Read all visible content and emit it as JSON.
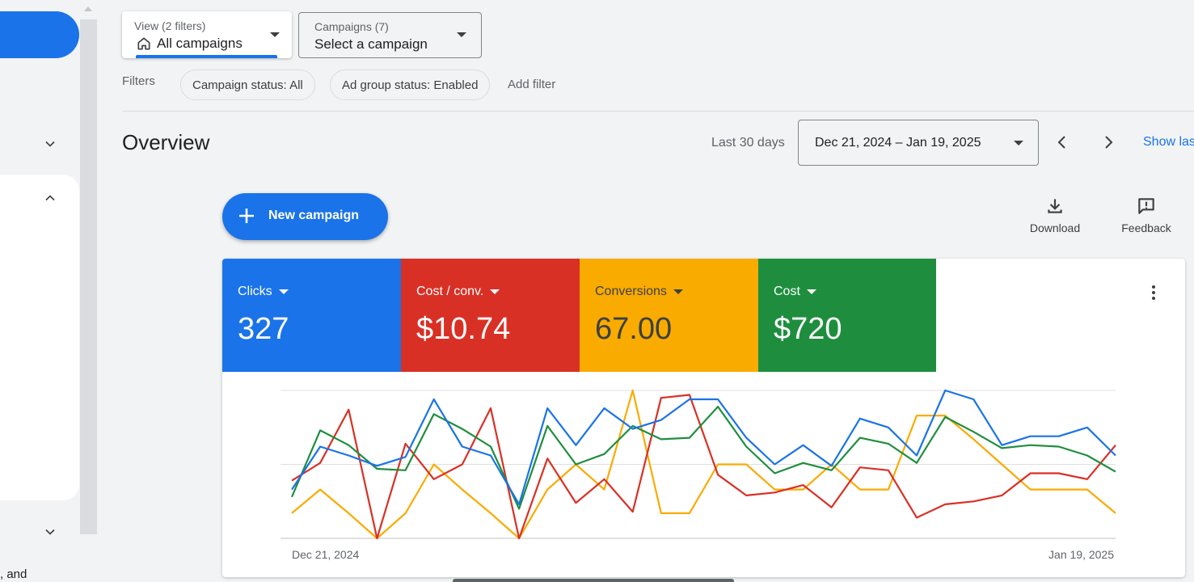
{
  "view_select": {
    "label": "View (2 filters)",
    "value": "All campaigns"
  },
  "campaign_select": {
    "label": "Campaigns (7)",
    "value": "Select a campaign"
  },
  "filters": {
    "label": "Filters",
    "chips": [
      "Campaign status: All",
      "Ad group status: Enabled"
    ],
    "add_label": "Add filter"
  },
  "overview": {
    "title": "Overview",
    "range_label": "Last 30 days",
    "date_range": "Dec 21, 2024 – Jan 19, 2025",
    "show_last": "Show las"
  },
  "actions": {
    "new_campaign": "New campaign",
    "download": "Download",
    "feedback": "Feedback"
  },
  "left_nav": {
    "footer_text": ", and"
  },
  "metrics": [
    {
      "label": "Clicks",
      "value": "327",
      "color": "#1a73e8",
      "text_color": "#ffffff"
    },
    {
      "label": "Cost / conv.",
      "value": "$10.74",
      "color": "#d93025",
      "text_color": "#ffffff"
    },
    {
      "label": "Conversions",
      "value": "67.00",
      "color": "#f9ab00",
      "text_color": "#3c4043"
    },
    {
      "label": "Cost",
      "value": "$720",
      "color": "#1e8e3e",
      "text_color": "#ffffff"
    }
  ],
  "chart_data": {
    "type": "line",
    "x_start_label": "Dec 21, 2024",
    "x_end_label": "Jan 19, 2025",
    "ylim": [
      0,
      1
    ],
    "grid": true,
    "series": [
      {
        "name": "Clicks",
        "color": "#1a73e8",
        "values": [
          0.33,
          0.62,
          0.56,
          0.49,
          0.55,
          0.94,
          0.62,
          0.56,
          0.23,
          0.88,
          0.63,
          0.88,
          0.74,
          0.8,
          0.94,
          0.94,
          0.68,
          0.5,
          0.63,
          0.49,
          0.81,
          0.75,
          0.56,
          1.0,
          0.94,
          0.63,
          0.69,
          0.69,
          0.75,
          0.56
        ]
      },
      {
        "name": "Cost / conv.",
        "color": "#d93025",
        "values": [
          0.39,
          0.51,
          0.87,
          0.0,
          0.64,
          0.4,
          0.5,
          0.88,
          0.0,
          0.54,
          0.24,
          0.4,
          0.18,
          0.95,
          0.97,
          0.43,
          0.29,
          0.31,
          0.36,
          0.21,
          0.48,
          0.46,
          0.14,
          0.23,
          0.25,
          0.29,
          0.44,
          0.44,
          0.4,
          0.63
        ]
      },
      {
        "name": "Conversions",
        "color": "#f9ab00",
        "values": [
          0.17,
          0.33,
          0.17,
          0.0,
          0.17,
          0.5,
          0.33,
          0.17,
          0.0,
          0.33,
          0.5,
          0.33,
          1.0,
          0.17,
          0.17,
          0.5,
          0.5,
          0.33,
          0.33,
          0.5,
          0.33,
          0.33,
          0.83,
          0.83,
          0.67,
          0.5,
          0.33,
          0.33,
          0.33,
          0.17
        ]
      },
      {
        "name": "Cost",
        "color": "#1e8e3e",
        "values": [
          0.28,
          0.73,
          0.63,
          0.47,
          0.46,
          0.84,
          0.74,
          0.62,
          0.2,
          0.76,
          0.5,
          0.57,
          0.76,
          0.67,
          0.68,
          0.89,
          0.62,
          0.44,
          0.51,
          0.46,
          0.68,
          0.64,
          0.51,
          0.82,
          0.72,
          0.61,
          0.63,
          0.62,
          0.56,
          0.45
        ]
      }
    ]
  }
}
